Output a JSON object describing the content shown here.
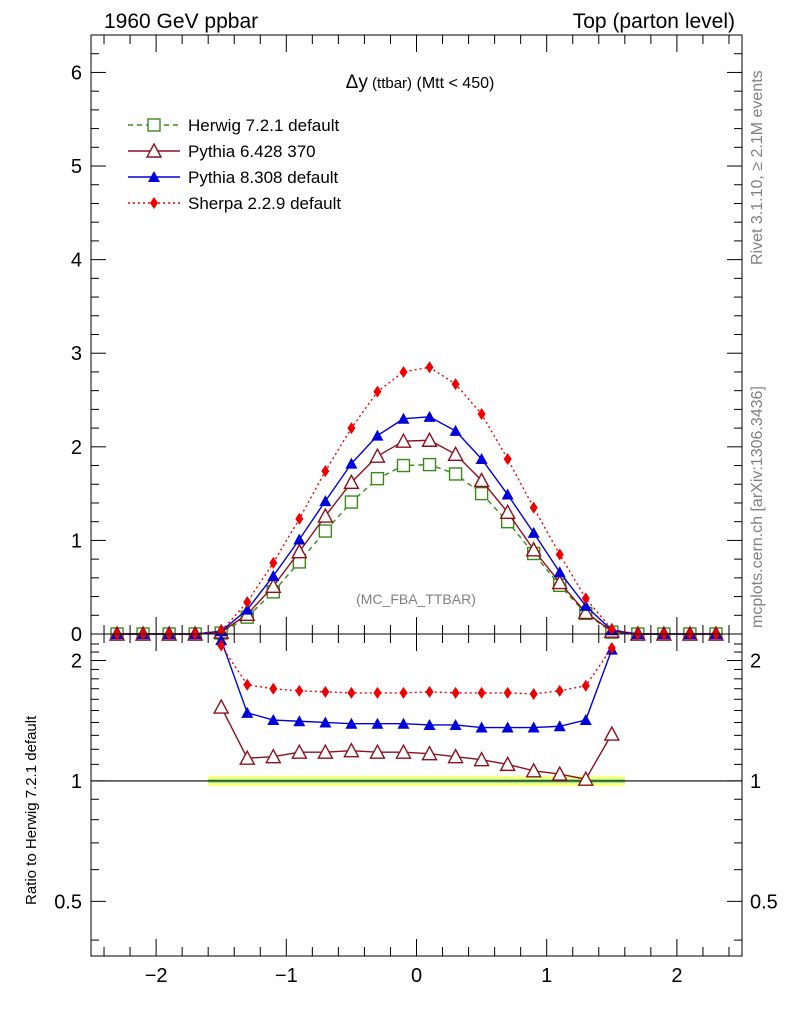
{
  "header": {
    "left": "1960 GeV ppbar",
    "right": "Top (parton level)"
  },
  "side": {
    "rivet": "Rivet 3.1.10, ≥ 2.1M events",
    "mcplots": "mcplots.cern.ch [arXiv:1306.3436]"
  },
  "watermark": "(MC_FBA_TTBAR)",
  "plot_title": {
    "symbol": "Δy",
    "sub": " (ttbar)",
    "rest": " (Mtt < 450)"
  },
  "ratio_ylabel": "Ratio to Herwig 7.2.1 default",
  "colors": {
    "herwig": "#3a8a1a",
    "pythia6": "#8b1020",
    "pythia8": "#0000dd",
    "sherpa": "#ee0000",
    "band_outer": "#ffff80",
    "band_inner": "#90ee90"
  },
  "chart_data": [
    {
      "type": "line",
      "panel": "main",
      "xlim": [
        -2.5,
        2.5
      ],
      "ylim": [
        0,
        6.4
      ],
      "yticks": [
        0,
        1,
        2,
        3,
        4,
        5,
        6
      ],
      "ytick_labels": [
        "0",
        "1",
        "2",
        "3",
        "4",
        "5",
        "6"
      ],
      "legend_position": "top-left",
      "x": [
        -2.3,
        -2.1,
        -1.9,
        -1.7,
        -1.5,
        -1.3,
        -1.1,
        -0.9,
        -0.7,
        -0.5,
        -0.3,
        -0.1,
        0.1,
        0.3,
        0.5,
        0.7,
        0.9,
        1.1,
        1.3,
        1.5,
        1.7,
        1.9,
        2.1,
        2.3
      ],
      "series": [
        {
          "name": "Herwig 7.2.1 default",
          "key": "herwig",
          "marker": "open-square",
          "line": "dashed",
          "values": [
            0,
            0,
            0,
            0,
            0.01,
            0.18,
            0.45,
            0.77,
            1.1,
            1.41,
            1.66,
            1.8,
            1.81,
            1.71,
            1.5,
            1.2,
            0.86,
            0.52,
            0.22,
            0.02,
            0,
            0,
            0,
            0
          ]
        },
        {
          "name": "Pythia 6.428 370",
          "key": "pythia6",
          "marker": "open-triangle",
          "line": "solid",
          "values": [
            0,
            0,
            0,
            0,
            0.02,
            0.21,
            0.51,
            0.88,
            1.26,
            1.62,
            1.9,
            2.06,
            2.07,
            1.92,
            1.64,
            1.3,
            0.9,
            0.55,
            0.23,
            0.03,
            0,
            0,
            0,
            0
          ]
        },
        {
          "name": "Pythia 8.308 default",
          "key": "pythia8",
          "marker": "filled-triangle",
          "line": "solid",
          "values": [
            0,
            0,
            0,
            0,
            0.03,
            0.26,
            0.62,
            1.01,
            1.42,
            1.82,
            2.12,
            2.3,
            2.32,
            2.17,
            1.87,
            1.49,
            1.08,
            0.66,
            0.3,
            0.04,
            0,
            0,
            0,
            0
          ]
        },
        {
          "name": "Sherpa 2.2.9 default",
          "key": "sherpa",
          "marker": "filled-diamond",
          "line": "dotted",
          "values": [
            0,
            0,
            0,
            0,
            0.03,
            0.34,
            0.76,
            1.23,
            1.74,
            2.2,
            2.59,
            2.8,
            2.85,
            2.67,
            2.35,
            1.87,
            1.35,
            0.85,
            0.38,
            0.05,
            0,
            0,
            0,
            0
          ]
        }
      ]
    },
    {
      "type": "line",
      "panel": "ratio",
      "ylabel": "Ratio to Herwig 7.2.1 default",
      "xlim": [
        -2.5,
        2.5
      ],
      "ylim": [
        0.365,
        2.33
      ],
      "log_y": true,
      "yticks": [
        0.5,
        1,
        2
      ],
      "ytick_labels": [
        "0.5",
        "1",
        "2"
      ],
      "xticks": [
        -2,
        -1,
        0,
        1,
        2
      ],
      "xtick_labels": [
        "−2",
        "−1",
        "0",
        "1",
        "2"
      ],
      "reference": 1,
      "band_x": [
        -1.6,
        1.6
      ],
      "x": [
        -1.5,
        -1.3,
        -1.1,
        -0.9,
        -0.7,
        -0.5,
        -0.3,
        -0.1,
        0.1,
        0.3,
        0.5,
        0.7,
        0.9,
        1.1,
        1.3,
        1.5
      ],
      "series": [
        {
          "name": "Pythia 6.428 370",
          "key": "pythia6",
          "marker": "open-triangle",
          "line": "solid",
          "values": [
            1.53,
            1.14,
            1.15,
            1.18,
            1.18,
            1.19,
            1.18,
            1.18,
            1.17,
            1.15,
            1.13,
            1.1,
            1.06,
            1.04,
            1.01,
            1.31
          ]
        },
        {
          "name": "Pythia 8.308 default",
          "key": "pythia8",
          "marker": "filled-triangle",
          "line": "solid",
          "values": [
            2.25,
            1.48,
            1.42,
            1.41,
            1.4,
            1.39,
            1.39,
            1.39,
            1.38,
            1.38,
            1.36,
            1.36,
            1.36,
            1.37,
            1.42,
            2.13
          ]
        },
        {
          "name": "Sherpa 2.2.9 default",
          "key": "sherpa",
          "marker": "filled-diamond",
          "line": "dotted",
          "values": [
            2.18,
            1.74,
            1.7,
            1.68,
            1.67,
            1.66,
            1.66,
            1.66,
            1.67,
            1.66,
            1.66,
            1.66,
            1.65,
            1.68,
            1.73,
            2.15
          ]
        }
      ]
    }
  ]
}
